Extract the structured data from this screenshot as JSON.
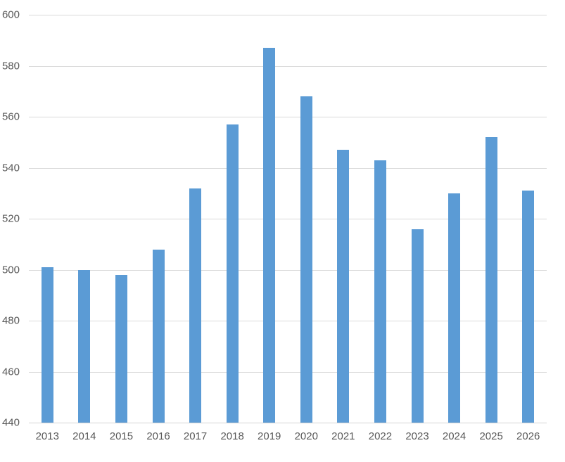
{
  "chart_data": {
    "type": "bar",
    "title": "",
    "xlabel": "",
    "ylabel": "",
    "categories": [
      "2013",
      "2014",
      "2015",
      "2016",
      "2017",
      "2018",
      "2019",
      "2020",
      "2021",
      "2022",
      "2023",
      "2024",
      "2025",
      "2026"
    ],
    "values": [
      501,
      500,
      498,
      508,
      532,
      557,
      587,
      568,
      547,
      543,
      516,
      530,
      552,
      531
    ],
    "ylim": [
      440,
      600
    ],
    "yticks": [
      440,
      460,
      480,
      500,
      520,
      540,
      560,
      580,
      600
    ],
    "grid": true,
    "legend": false,
    "colors": {
      "bar": "#5b9bd5",
      "gridline": "#d9d9d9",
      "axis_line": "#d3d3d3",
      "labels": "#595959",
      "background": "#ffffff"
    }
  }
}
